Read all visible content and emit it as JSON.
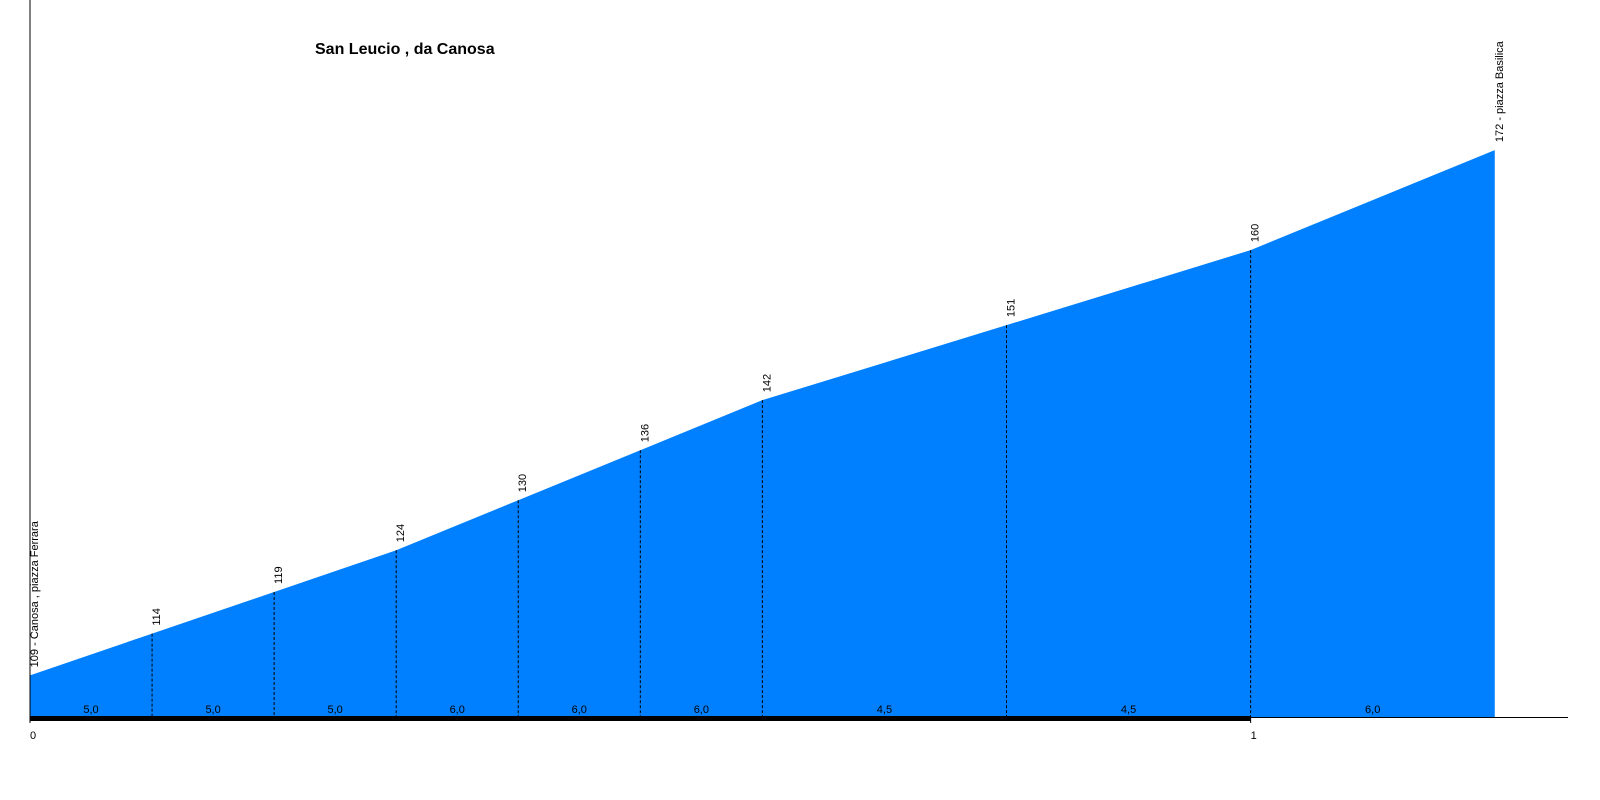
{
  "chart_data": {
    "type": "area",
    "title": "San Leucio , da Canosa",
    "color": "#0080ff",
    "x": [
      0,
      0.1,
      0.2,
      0.3,
      0.4,
      0.5,
      0.6,
      0.8,
      1.0,
      1.2
    ],
    "values": [
      109,
      114,
      119,
      124,
      130,
      136,
      142,
      151,
      160,
      172
    ],
    "value_labels": [
      "109 - Canosa , piazza Ferrara",
      "114",
      "119",
      "124",
      "130",
      "136",
      "142",
      "151",
      "160",
      "172 - piazza Basilica"
    ],
    "segments": {
      "values": [
        5.0,
        5.0,
        5.0,
        6.0,
        6.0,
        6.0,
        4.5,
        4.5,
        6.0
      ],
      "value_labels": [
        "5,0",
        "5,0",
        "5,0",
        "6,0",
        "6,0",
        "6,0",
        "4,5",
        "4,5",
        "6,0"
      ]
    },
    "xlim": [
      0,
      1.26
    ],
    "xticks": [
      0,
      1
    ],
    "ylim": [
      104,
      190
    ]
  }
}
